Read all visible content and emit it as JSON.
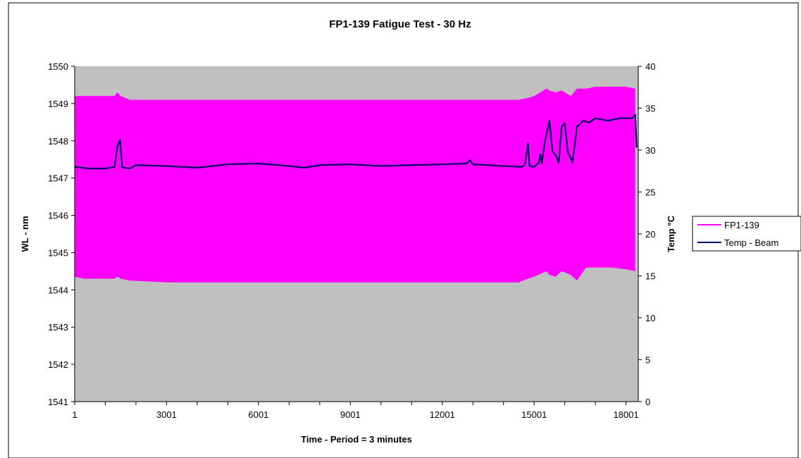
{
  "chart_data": {
    "type": "area",
    "title": "FP1-139 Fatigue Test - 30 Hz",
    "xlabel": "Time - Period = 3 minutes",
    "ylabel": "WL - nm",
    "y2label": "Temp °C",
    "xlim": [
      1,
      18400
    ],
    "xticks": [
      "1",
      "3001",
      "6001",
      "9001",
      "12001",
      "15001",
      "18001"
    ],
    "ylim": [
      1541,
      1550
    ],
    "yticks": [
      "1541",
      "1542",
      "1543",
      "1544",
      "1545",
      "1546",
      "1547",
      "1548",
      "1549",
      "1550"
    ],
    "y2lim": [
      0,
      40
    ],
    "y2ticks": [
      "0",
      "5",
      "10",
      "15",
      "20",
      "25",
      "30",
      "35",
      "40"
    ],
    "plot_background": "#c0c0c0",
    "grid": false,
    "legend_position": "right",
    "series": [
      {
        "name": "FP1-139",
        "color": "#ff00ff",
        "axis": "left",
        "kind": "band",
        "x": [
          1,
          300,
          1300,
          1400,
          1500,
          1800,
          3000,
          6000,
          9000,
          12000,
          14500,
          14800,
          15001,
          15400,
          15500,
          15700,
          15900,
          16200,
          16400,
          16700,
          17000,
          17500,
          18000,
          18300
        ],
        "upper": [
          1549.2,
          1549.2,
          1549.2,
          1549.3,
          1549.2,
          1549.1,
          1549.1,
          1549.1,
          1549.1,
          1549.1,
          1549.1,
          1549.15,
          1549.2,
          1549.4,
          1549.35,
          1549.3,
          1549.35,
          1549.2,
          1549.4,
          1549.4,
          1549.45,
          1549.45,
          1549.45,
          1549.4
        ],
        "lower": [
          1544.35,
          1544.3,
          1544.3,
          1544.35,
          1544.3,
          1544.25,
          1544.2,
          1544.2,
          1544.2,
          1544.2,
          1544.2,
          1544.3,
          1544.35,
          1544.5,
          1544.4,
          1544.35,
          1544.5,
          1544.4,
          1544.25,
          1544.6,
          1544.6,
          1544.6,
          1544.55,
          1544.5
        ]
      },
      {
        "name": "Temp - Beam",
        "color": "#000066",
        "axis": "right",
        "kind": "line",
        "x": [
          1,
          500,
          1000,
          1300,
          1400,
          1480,
          1550,
          1600,
          1800,
          2000,
          3000,
          4000,
          5000,
          6000,
          7000,
          7500,
          8000,
          9000,
          10000,
          11000,
          12000,
          12800,
          12900,
          13000,
          13500,
          14000,
          14600,
          14700,
          14800,
          14850,
          15000,
          15150,
          15200,
          15250,
          15350,
          15500,
          15600,
          15700,
          15800,
          15900,
          16000,
          16100,
          16200,
          16250,
          16350,
          16400,
          16500,
          16600,
          16800,
          17000,
          17400,
          17800,
          18200,
          18300,
          18350
        ],
        "y": [
          28,
          27.8,
          27.8,
          28,
          30.5,
          31.2,
          28,
          27.9,
          27.8,
          28.2,
          28.1,
          27.9,
          28.3,
          28.4,
          28.1,
          27.9,
          28.2,
          28.3,
          28.1,
          28.2,
          28.3,
          28.4,
          28.8,
          28.3,
          28.2,
          28.1,
          28,
          28.3,
          30.8,
          28.1,
          28,
          28.5,
          29.5,
          28.4,
          31,
          33.5,
          29.8,
          29.4,
          28.5,
          32.8,
          33.2,
          29.8,
          29,
          28.5,
          31.3,
          32.8,
          33.1,
          33.5,
          33.3,
          33.8,
          33.5,
          33.8,
          33.8,
          34.2,
          30.3
        ]
      }
    ]
  }
}
